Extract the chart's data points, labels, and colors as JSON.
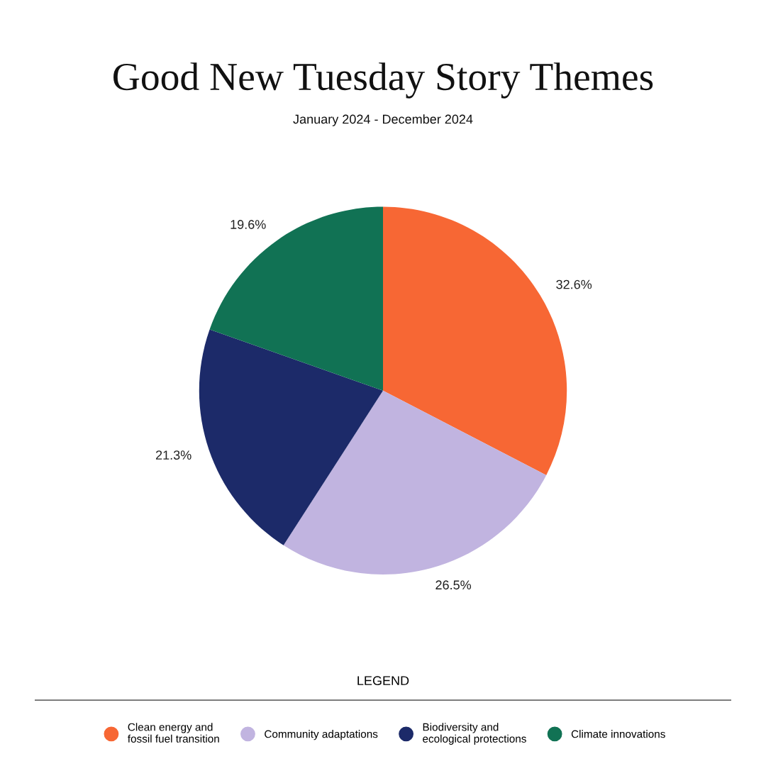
{
  "chart_data": {
    "type": "pie",
    "title": "Good New Tuesday Story Themes",
    "subtitle": "January 2024 - December 2024",
    "legend_title": "LEGEND",
    "categories": [
      "Clean energy and\nfossil fuel transition",
      "Community adaptations",
      "Biodiversity and\necological protections",
      "Climate innovations"
    ],
    "values": [
      32.6,
      26.5,
      21.3,
      19.6
    ],
    "colors": [
      "#f76734",
      "#c1b4e0",
      "#1c2a69",
      "#117254"
    ],
    "value_labels": [
      "32.6%",
      "26.5%",
      "21.3%",
      "19.6%"
    ],
    "legend": "bottom"
  }
}
